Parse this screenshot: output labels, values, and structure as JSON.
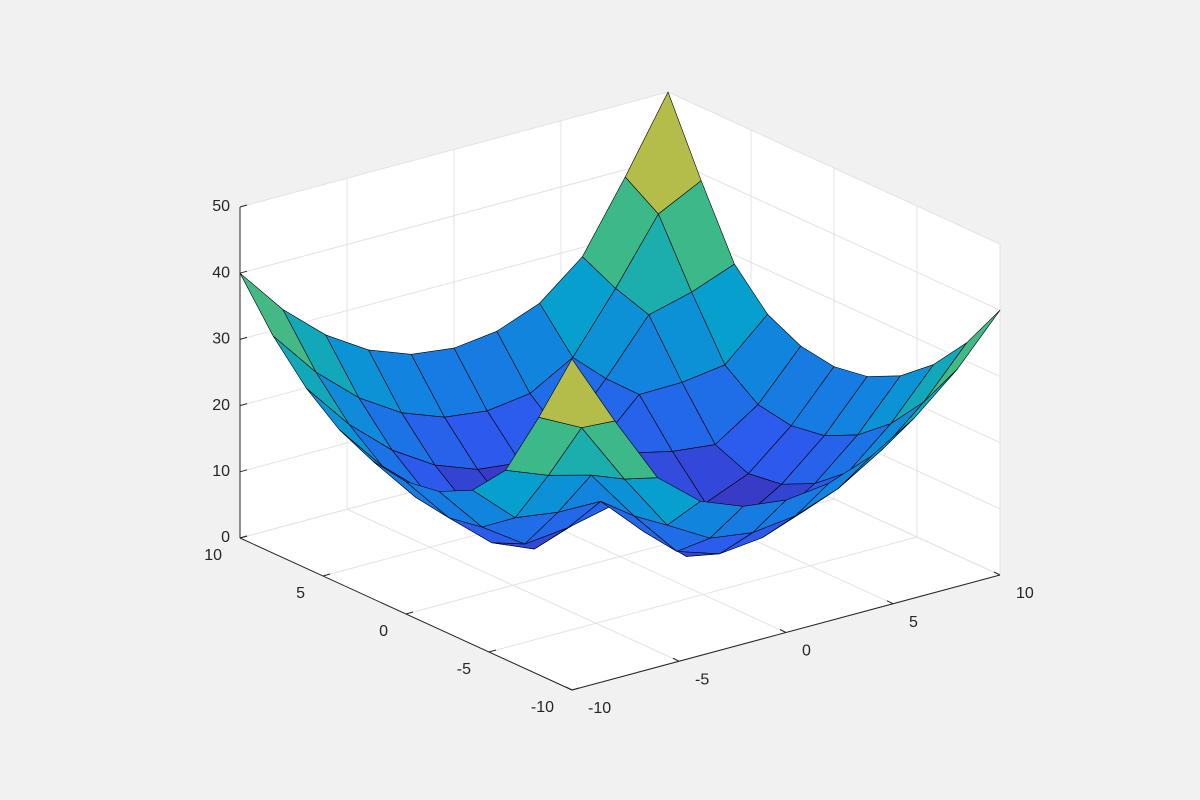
{
  "chart_data": {
    "type": "surface",
    "x": [
      -10,
      -8,
      -6,
      -4,
      -2,
      0,
      2,
      4,
      6,
      8,
      10
    ],
    "y": [
      -10,
      -8,
      -6,
      -4,
      -2,
      0,
      2,
      4,
      6,
      8,
      10
    ],
    "z": [
      [
        50,
        38.9,
        28.6,
        23.3,
        20.8,
        20,
        20.8,
        23.2,
        27.2,
        32.8,
        40
      ],
      [
        38.9,
        35.6,
        26.1,
        17.4,
        13.7,
        12.8,
        13.6,
        16,
        20,
        25.6,
        32.8
      ],
      [
        28.6,
        26.1,
        24.4,
        16.5,
        9.4,
        7.3,
        8,
        10.4,
        14.4,
        20,
        27.2
      ],
      [
        23.3,
        17.4,
        16.5,
        16.4,
        10.1,
        4.6,
        4.1,
        6.4,
        10.4,
        16,
        23.2
      ],
      [
        20.8,
        13.7,
        9.4,
        10.1,
        11.6,
        6.9,
        3,
        4.1,
        8,
        13.6,
        20.8
      ],
      [
        20,
        12.8,
        7.3,
        4.6,
        6.9,
        10,
        6.9,
        4.6,
        7.3,
        12.8,
        20
      ],
      [
        20.8,
        13.6,
        8,
        4.1,
        3,
        6.9,
        11.6,
        10.1,
        9.4,
        13.7,
        20.8
      ],
      [
        23.2,
        16,
        10.4,
        6.4,
        4.1,
        4.6,
        10.1,
        16.4,
        16.5,
        17.4,
        23.3
      ],
      [
        27.2,
        20,
        14.4,
        10.4,
        8,
        7.3,
        9.4,
        16.5,
        24.4,
        26.1,
        28.6
      ],
      [
        32.8,
        25.6,
        20,
        16,
        13.6,
        12.8,
        13.7,
        17.4,
        26.1,
        35.6,
        38.9
      ],
      [
        40,
        32.8,
        27.2,
        23.2,
        20.8,
        20,
        20.8,
        23.3,
        28.6,
        38.9,
        50
      ]
    ],
    "xlim": [
      -10,
      10
    ],
    "ylim": [
      -10,
      10
    ],
    "zlim": [
      0,
      50
    ],
    "xticks": [
      -10,
      -5,
      0,
      5,
      10
    ],
    "yticks": [
      -10,
      -5,
      0,
      5,
      10
    ],
    "zticks": [
      0,
      10,
      20,
      30,
      40,
      50
    ],
    "grid": true,
    "colormap": "parula",
    "edge_color": "#000000"
  }
}
